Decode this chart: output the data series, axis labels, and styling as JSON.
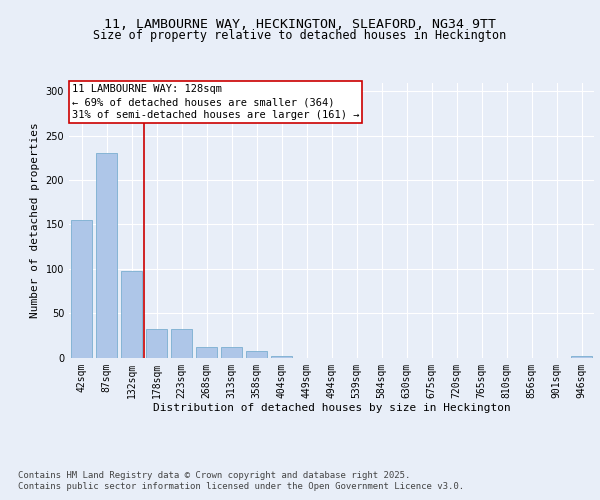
{
  "title_line1": "11, LAMBOURNE WAY, HECKINGTON, SLEAFORD, NG34 9TT",
  "title_line2": "Size of property relative to detached houses in Heckington",
  "xlabel": "Distribution of detached houses by size in Heckington",
  "ylabel": "Number of detached properties",
  "categories": [
    "42sqm",
    "87sqm",
    "132sqm",
    "178sqm",
    "223sqm",
    "268sqm",
    "313sqm",
    "358sqm",
    "404sqm",
    "449sqm",
    "494sqm",
    "539sqm",
    "584sqm",
    "630sqm",
    "675sqm",
    "720sqm",
    "765sqm",
    "810sqm",
    "856sqm",
    "901sqm",
    "946sqm"
  ],
  "values": [
    155,
    230,
    97,
    32,
    32,
    12,
    12,
    7,
    2,
    0,
    0,
    0,
    0,
    0,
    0,
    0,
    0,
    0,
    0,
    0,
    2
  ],
  "bar_color": "#aec6e8",
  "bar_edge_color": "#7aaed0",
  "vline_x_index": 2,
  "vline_color": "#cc0000",
  "annotation_text": "11 LAMBOURNE WAY: 128sqm\n← 69% of detached houses are smaller (364)\n31% of semi-detached houses are larger (161) →",
  "annotation_box_color": "#ffffff",
  "annotation_box_edge": "#cc0000",
  "ylim": [
    0,
    310
  ],
  "yticks": [
    0,
    50,
    100,
    150,
    200,
    250,
    300
  ],
  "bg_color": "#e8eef8",
  "plot_bg_color": "#e8eef8",
  "grid_color": "#ffffff",
  "footer_line1": "Contains HM Land Registry data © Crown copyright and database right 2025.",
  "footer_line2": "Contains public sector information licensed under the Open Government Licence v3.0.",
  "title_fontsize": 9.5,
  "subtitle_fontsize": 8.5,
  "axis_label_fontsize": 8,
  "tick_fontsize": 7,
  "annotation_fontsize": 7.5,
  "footer_fontsize": 6.5
}
